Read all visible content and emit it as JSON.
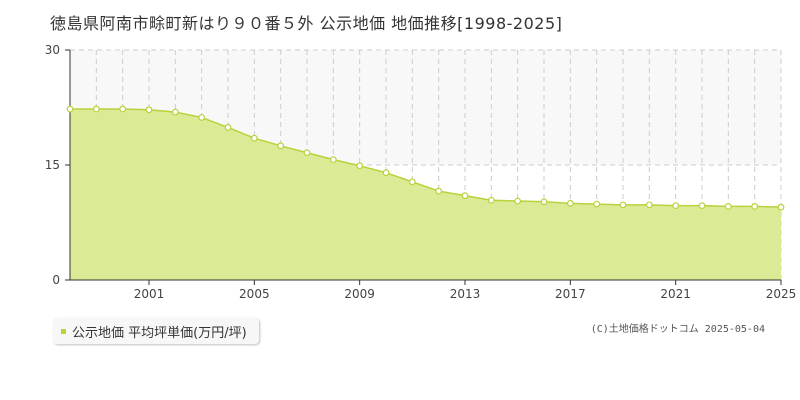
{
  "colors": {
    "fill": "#dbeb95",
    "line": "#b7d23c",
    "point_fill": "#ffffff",
    "band": "#f8f8f8",
    "grid": "#cccccc"
  },
  "legend": {
    "label": "公示地価 平均坪単価(万円/坪)",
    "marker_color": "#b7d23c"
  },
  "copyright": "(C)土地価格ドットコム 2025-05-04",
  "chart_data": {
    "type": "area",
    "title": "徳島県阿南市畭町新はり９０番５外 公示地価 地価推移[1998-2025]",
    "xlabel": "",
    "ylabel": "",
    "xlim": [
      1998,
      2025
    ],
    "ylim": [
      0,
      30
    ],
    "yticks": [
      0,
      15,
      30
    ],
    "xticks": [
      2001,
      2005,
      2009,
      2013,
      2017,
      2021,
      2025
    ],
    "grid": true,
    "legend_position": "bottom-left",
    "x": [
      1998,
      1999,
      2000,
      2001,
      2002,
      2003,
      2004,
      2005,
      2006,
      2007,
      2008,
      2009,
      2010,
      2011,
      2012,
      2013,
      2014,
      2015,
      2016,
      2017,
      2018,
      2019,
      2020,
      2021,
      2022,
      2023,
      2024,
      2025
    ],
    "series": [
      {
        "name": "公示地価 平均坪単価(万円/坪)",
        "values": [
          22.3,
          22.3,
          22.3,
          22.2,
          21.9,
          21.2,
          19.9,
          18.5,
          17.5,
          16.6,
          15.7,
          14.9,
          14.0,
          12.8,
          11.6,
          11.0,
          10.4,
          10.3,
          10.2,
          10.0,
          9.9,
          9.8,
          9.8,
          9.7,
          9.7,
          9.6,
          9.6,
          9.5
        ]
      }
    ]
  }
}
